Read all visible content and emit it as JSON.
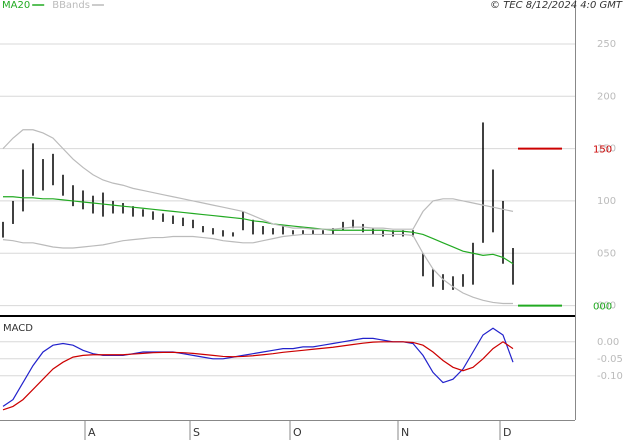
{
  "chart_data": [
    {
      "type": "hilo",
      "source": "© TEC 8/12/2024 4:0 GMT",
      "x": [
        0,
        1,
        2,
        3,
        4,
        5,
        6,
        7,
        8,
        9,
        10,
        11,
        12,
        13,
        14,
        15,
        16,
        17,
        18,
        19,
        20,
        21,
        22,
        23,
        24,
        25,
        26,
        27,
        28,
        29,
        30,
        31,
        32,
        33,
        34,
        35,
        36,
        37,
        38,
        39,
        40,
        41,
        42,
        43,
        44,
        45,
        46,
        47,
        48,
        49,
        50,
        51
      ],
      "high": [
        80,
        100,
        130,
        155,
        140,
        145,
        125,
        115,
        110,
        105,
        108,
        100,
        98,
        95,
        92,
        90,
        88,
        86,
        84,
        82,
        76,
        74,
        72,
        70,
        90,
        82,
        76,
        74,
        76,
        72,
        72,
        72,
        72,
        74,
        80,
        82,
        78,
        74,
        72,
        72,
        72,
        72,
        50,
        35,
        30,
        28,
        30,
        60,
        175,
        130,
        100,
        55
      ],
      "low": [
        65,
        78,
        90,
        105,
        110,
        115,
        105,
        95,
        92,
        88,
        85,
        88,
        88,
        85,
        85,
        82,
        80,
        78,
        76,
        74,
        70,
        68,
        66,
        66,
        72,
        68,
        68,
        68,
        68,
        68,
        68,
        68,
        68,
        68,
        72,
        74,
        70,
        68,
        66,
        66,
        66,
        66,
        28,
        18,
        15,
        15,
        18,
        20,
        60,
        70,
        40,
        20
      ],
      "color": "#000000",
      "series": [
        {
          "name": "MA20",
          "color": "#22aa22",
          "values": [
            104,
            104,
            103,
            103,
            102,
            102,
            101,
            100,
            99,
            98,
            97,
            96,
            95,
            94,
            93,
            92,
            91,
            90,
            89,
            88,
            87,
            86,
            85,
            84,
            83,
            81,
            80,
            78,
            77,
            76,
            75,
            74,
            73,
            72,
            72,
            72,
            72,
            72,
            72,
            71,
            71,
            70,
            68,
            64,
            60,
            56,
            52,
            50,
            48,
            49,
            46,
            40
          ]
        },
        {
          "name": "BBands",
          "color": "#bbbbbb",
          "values": [
            150,
            160,
            168,
            168,
            165,
            160,
            150,
            140,
            132,
            125,
            120,
            117,
            115,
            112,
            110,
            108,
            106,
            104,
            102,
            100,
            98,
            96,
            94,
            92,
            90,
            86,
            82,
            78,
            76,
            74,
            74,
            73,
            73,
            73,
            74,
            75,
            75,
            74,
            74,
            73,
            73,
            73,
            90,
            100,
            102,
            102,
            100,
            98,
            96,
            94,
            92,
            90
          ],
          "lower": [
            63,
            62,
            60,
            60,
            58,
            56,
            55,
            55,
            56,
            57,
            58,
            60,
            62,
            63,
            64,
            65,
            65,
            66,
            66,
            66,
            65,
            64,
            62,
            61,
            60,
            60,
            62,
            64,
            66,
            67,
            68,
            68,
            68,
            68,
            68,
            68,
            68,
            68,
            68,
            68,
            68,
            67,
            50,
            35,
            25,
            18,
            12,
            8,
            5,
            3,
            2,
            2
          ]
        }
      ],
      "markers": [
        {
          "value": 150,
          "label": "150",
          "color": "#cc0000"
        },
        {
          "value": 0,
          "label": "000",
          "color": "#22aa22"
        }
      ],
      "xlim": [
        -0.3,
        57.2
      ],
      "xticks": [
        {
          "value": 8.2,
          "label": "A"
        },
        {
          "value": 18.7,
          "label": "S"
        },
        {
          "value": 28.7,
          "label": "O"
        },
        {
          "value": 39.5,
          "label": "N"
        },
        {
          "value": 49.7,
          "label": "D"
        }
      ],
      "ylim": [
        -9,
        292
      ],
      "yticks": [
        {
          "value": 0,
          "label": "000"
        },
        {
          "value": 50,
          "label": "050"
        },
        100,
        150,
        200,
        250
      ],
      "grid": true
    },
    {
      "type": "line",
      "title": "MACD",
      "x": [
        0,
        1,
        2,
        3,
        4,
        5,
        6,
        7,
        8,
        9,
        10,
        11,
        12,
        13,
        14,
        15,
        16,
        17,
        18,
        19,
        20,
        21,
        22,
        23,
        24,
        25,
        26,
        27,
        28,
        29,
        30,
        31,
        32,
        33,
        34,
        35,
        36,
        37,
        38,
        39,
        40,
        41,
        42,
        43,
        44,
        45,
        46,
        47,
        48,
        49,
        50,
        51
      ],
      "series": [
        {
          "color": "#2222cc",
          "values": [
            -0.19,
            -0.17,
            -0.12,
            -0.07,
            -0.03,
            -0.01,
            -0.005,
            -0.01,
            -0.025,
            -0.035,
            -0.04,
            -0.04,
            -0.04,
            -0.035,
            -0.03,
            -0.03,
            -0.03,
            -0.03,
            -0.035,
            -0.04,
            -0.045,
            -0.05,
            -0.05,
            -0.045,
            -0.04,
            -0.035,
            -0.03,
            -0.025,
            -0.02,
            -0.02,
            -0.015,
            -0.015,
            -0.01,
            -0.005,
            0.0,
            0.005,
            0.01,
            0.01,
            0.005,
            0.0,
            0.0,
            -0.005,
            -0.04,
            -0.09,
            -0.12,
            -0.11,
            -0.08,
            -0.03,
            0.02,
            0.04,
            0.02,
            -0.06
          ]
        },
        {
          "color": "#cc0000",
          "values": [
            -0.2,
            -0.19,
            -0.17,
            -0.14,
            -0.11,
            -0.08,
            -0.06,
            -0.045,
            -0.04,
            -0.038,
            -0.038,
            -0.038,
            -0.038,
            -0.036,
            -0.034,
            -0.032,
            -0.031,
            -0.031,
            -0.032,
            -0.034,
            -0.037,
            -0.04,
            -0.043,
            -0.044,
            -0.043,
            -0.041,
            -0.038,
            -0.035,
            -0.031,
            -0.028,
            -0.025,
            -0.022,
            -0.019,
            -0.016,
            -0.012,
            -0.008,
            -0.004,
            -0.001,
            0.0,
            0.0,
            0.0,
            -0.002,
            -0.01,
            -0.03,
            -0.055,
            -0.075,
            -0.085,
            -0.075,
            -0.05,
            -0.02,
            0.0,
            -0.02
          ]
        }
      ],
      "xlim": [
        -0.3,
        57.2
      ],
      "ylim": [
        -0.23,
        0.07
      ],
      "yticks": [
        {
          "value": 0,
          "label": "0.00"
        },
        {
          "value": -0.05,
          "label": "-0.05"
        },
        {
          "value": -0.1,
          "label": "-0.10"
        }
      ],
      "grid": true
    }
  ]
}
